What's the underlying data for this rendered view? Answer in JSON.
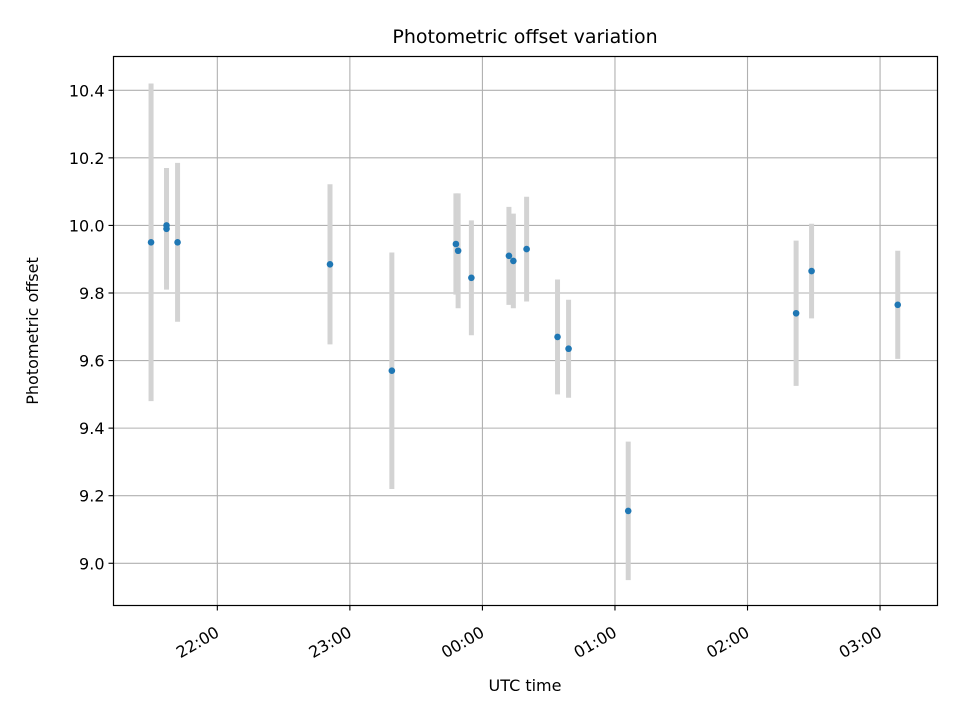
{
  "chart_data": {
    "type": "scatter",
    "title": "Photometric offset variation",
    "xlabel": "UTC time",
    "ylabel": "Photometric offset",
    "x_unit": "UTC",
    "xlim": [
      "21:13",
      "03:26"
    ],
    "ylim": [
      8.875,
      10.5
    ],
    "x_ticks": [
      "22:00",
      "23:00",
      "00:00",
      "01:00",
      "02:00",
      "03:00"
    ],
    "y_ticks": [
      9.0,
      9.2,
      9.4,
      9.6,
      9.8,
      10.0,
      10.2,
      10.4
    ],
    "grid": true,
    "point_color": "#1f77b4",
    "errorbar_color": "#d3d3d3",
    "points": [
      {
        "x": "21:30",
        "y": 9.95,
        "err": 0.47
      },
      {
        "x": "21:37",
        "y": 9.99,
        "err": 0.18
      },
      {
        "x": "21:37",
        "y": 10.0,
        "err": 0.17
      },
      {
        "x": "21:42",
        "y": 9.95,
        "err": 0.235
      },
      {
        "x": "22:51",
        "y": 9.885,
        "err": 0.237
      },
      {
        "x": "23:19",
        "y": 9.57,
        "err": 0.35
      },
      {
        "x": "23:48",
        "y": 9.945,
        "err": 0.15
      },
      {
        "x": "23:49",
        "y": 9.925,
        "err": 0.17
      },
      {
        "x": "23:55",
        "y": 9.845,
        "err": 0.17
      },
      {
        "x": "00:12",
        "y": 9.91,
        "err": 0.145
      },
      {
        "x": "00:14",
        "y": 9.895,
        "err": 0.14
      },
      {
        "x": "00:20",
        "y": 9.93,
        "err": 0.155
      },
      {
        "x": "00:34",
        "y": 9.67,
        "err": 0.17
      },
      {
        "x": "00:39",
        "y": 9.635,
        "err": 0.145
      },
      {
        "x": "01:06",
        "y": 9.155,
        "err": 0.205
      },
      {
        "x": "02:22",
        "y": 9.74,
        "err": 0.215
      },
      {
        "x": "02:29",
        "y": 9.865,
        "err": 0.14
      },
      {
        "x": "03:08",
        "y": 9.765,
        "err": 0.16
      }
    ]
  }
}
